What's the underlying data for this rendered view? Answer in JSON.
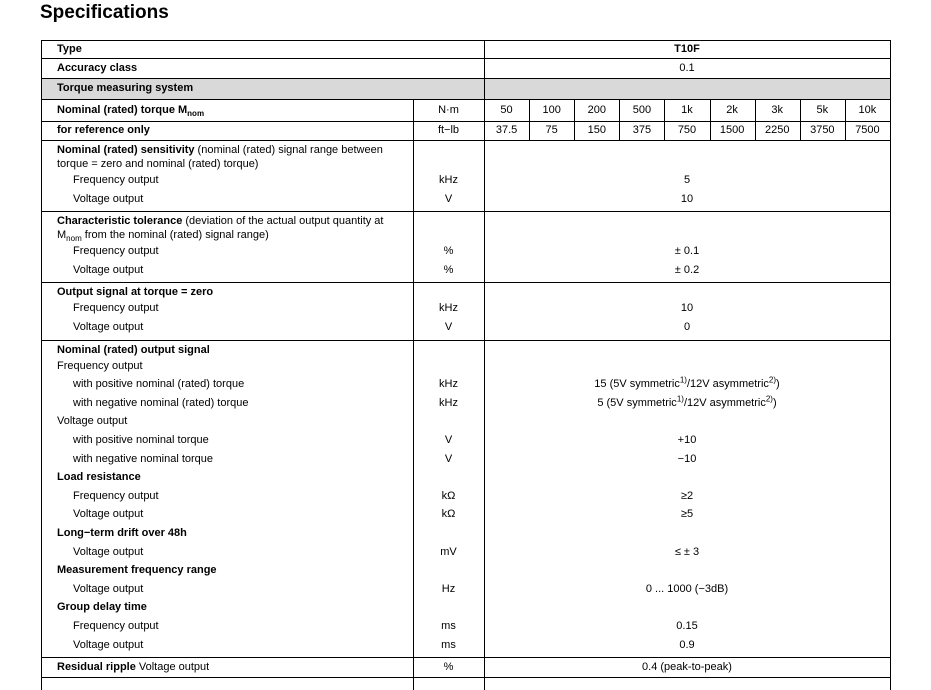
{
  "header": {
    "title": "Specifications"
  },
  "table": {
    "type_row": {
      "label": "Type",
      "value": "T10F"
    },
    "accuracy_row": {
      "label": "Accuracy class",
      "value": "0.1"
    },
    "section": "Torque measuring system",
    "torque_rows": [
      {
        "label": [
          "Nominal (rated) torque M",
          {
            "sub": "nom"
          }
        ],
        "unit": "N·m",
        "values": [
          "50",
          "100",
          "200",
          "500",
          "1k",
          "2k",
          "3k",
          "5k",
          "10k"
        ]
      },
      {
        "label": "for reference only",
        "unit": "ft−lb",
        "values": [
          "37.5",
          "75",
          "150",
          "375",
          "750",
          "1500",
          "2250",
          "3750",
          "7500"
        ]
      }
    ],
    "blocks": [
      {
        "heading": "Nominal (rated) sensitivity",
        "note": "(nominal (rated) signal range between torque = zero and nominal (rated) torque)",
        "rows": [
          {
            "label": "Frequency output",
            "level": 1,
            "unit": "kHz",
            "value": "5"
          },
          {
            "label": "Voltage output",
            "level": 1,
            "unit": "V",
            "value": "10"
          }
        ]
      },
      {
        "heading": "Characteristic tolerance",
        "note": [
          "(deviation of the actual output quantity at M",
          {
            "sub": "nom"
          },
          " from the nominal (rated) signal range)"
        ],
        "rows": [
          {
            "label": "Frequency output",
            "level": 1,
            "unit": "%",
            "value": "± 0.1"
          },
          {
            "label": "Voltage output",
            "level": 1,
            "unit": "%",
            "value": "± 0.2"
          }
        ]
      },
      {
        "heading": "Output signal at torque = zero",
        "rows": [
          {
            "label": "Frequency output",
            "level": 1,
            "unit": "kHz",
            "value": "10"
          },
          {
            "label": "Voltage output",
            "level": 1,
            "unit": "V",
            "value": "0"
          }
        ]
      },
      {
        "heading": "Nominal (rated) output signal",
        "rows": [
          {
            "label": "Frequency output",
            "level": 0
          },
          {
            "label": "with positive nominal (rated) torque",
            "level": 1,
            "unit": "kHz",
            "value": [
              "15 (5V symmetric",
              {
                "sup": "1)"
              },
              "/12V asymmetric",
              {
                "sup": "2)"
              },
              ")"
            ]
          },
          {
            "label": "with negative nominal (rated) torque",
            "level": 1,
            "unit": "kHz",
            "value": [
              "5 (5V symmetric",
              {
                "sup": "1)"
              },
              "/12V asymmetric",
              {
                "sup": "2)"
              },
              ")"
            ]
          },
          {
            "label": "Voltage output",
            "level": 0
          },
          {
            "label": "with positive nominal torque",
            "level": 1,
            "unit": "V",
            "value": "+10"
          },
          {
            "label": "with negative nominal torque",
            "level": 1,
            "unit": "V",
            "value": "−10"
          },
          {
            "label": "Load resistance",
            "level": 0,
            "bold": true
          },
          {
            "label": "Frequency output",
            "level": 1,
            "unit": "kΩ",
            "value": "≥2"
          },
          {
            "label": "Voltage output",
            "level": 1,
            "unit": "kΩ",
            "value": "≥5"
          },
          {
            "label": "Long−term drift over 48h",
            "level": 0,
            "bold": true
          },
          {
            "label": "Voltage output",
            "level": 1,
            "unit": "mV",
            "value": "≤ ± 3"
          },
          {
            "label": "Measurement frequency range",
            "level": 0,
            "bold": true
          },
          {
            "label": "Voltage output",
            "level": 1,
            "unit": "Hz",
            "value": "0 ... 1000 (−3dB)"
          },
          {
            "label": "Group delay time",
            "level": 0,
            "bold": true
          },
          {
            "label": "Frequency output",
            "level": 1,
            "unit": "ms",
            "value": "0.15"
          },
          {
            "label": "Voltage output",
            "level": 1,
            "unit": "ms",
            "value": "0.9"
          }
        ]
      },
      {
        "heading": "Residual ripple",
        "note": "Voltage output",
        "unit": "%",
        "value": "0.4 (peak-to-peak)",
        "rows": []
      }
    ]
  }
}
